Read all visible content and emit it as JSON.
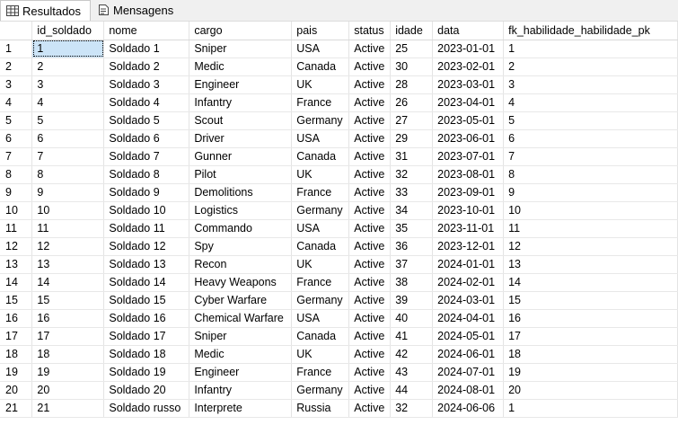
{
  "tabs": [
    {
      "label": "Resultados",
      "icon": "grid-icon"
    },
    {
      "label": "Mensagens",
      "icon": "messages-icon"
    }
  ],
  "table": {
    "columns": [
      "",
      "id_soldado",
      "nome",
      "cargo",
      "pais",
      "status",
      "idade",
      "data",
      "fk_habilidade_habilidade_pk"
    ],
    "rows": [
      [
        "1",
        "1",
        "Soldado 1",
        "Sniper",
        "USA",
        "Active",
        "25",
        "2023-01-01",
        "1"
      ],
      [
        "2",
        "2",
        "Soldado 2",
        "Medic",
        "Canada",
        "Active",
        "30",
        "2023-02-01",
        "2"
      ],
      [
        "3",
        "3",
        "Soldado 3",
        "Engineer",
        "UK",
        "Active",
        "28",
        "2023-03-01",
        "3"
      ],
      [
        "4",
        "4",
        "Soldado 4",
        "Infantry",
        "France",
        "Active",
        "26",
        "2023-04-01",
        "4"
      ],
      [
        "5",
        "5",
        "Soldado 5",
        "Scout",
        "Germany",
        "Active",
        "27",
        "2023-05-01",
        "5"
      ],
      [
        "6",
        "6",
        "Soldado 6",
        "Driver",
        "USA",
        "Active",
        "29",
        "2023-06-01",
        "6"
      ],
      [
        "7",
        "7",
        "Soldado 7",
        "Gunner",
        "Canada",
        "Active",
        "31",
        "2023-07-01",
        "7"
      ],
      [
        "8",
        "8",
        "Soldado 8",
        "Pilot",
        "UK",
        "Active",
        "32",
        "2023-08-01",
        "8"
      ],
      [
        "9",
        "9",
        "Soldado 9",
        "Demolitions",
        "France",
        "Active",
        "33",
        "2023-09-01",
        "9"
      ],
      [
        "10",
        "10",
        "Soldado 10",
        "Logistics",
        "Germany",
        "Active",
        "34",
        "2023-10-01",
        "10"
      ],
      [
        "11",
        "11",
        "Soldado 11",
        "Commando",
        "USA",
        "Active",
        "35",
        "2023-11-01",
        "11"
      ],
      [
        "12",
        "12",
        "Soldado 12",
        "Spy",
        "Canada",
        "Active",
        "36",
        "2023-12-01",
        "12"
      ],
      [
        "13",
        "13",
        "Soldado 13",
        "Recon",
        "UK",
        "Active",
        "37",
        "2024-01-01",
        "13"
      ],
      [
        "14",
        "14",
        "Soldado 14",
        "Heavy Weapons",
        "France",
        "Active",
        "38",
        "2024-02-01",
        "14"
      ],
      [
        "15",
        "15",
        "Soldado 15",
        "Cyber Warfare",
        "Germany",
        "Active",
        "39",
        "2024-03-01",
        "15"
      ],
      [
        "16",
        "16",
        "Soldado 16",
        "Chemical Warfare",
        "USA",
        "Active",
        "40",
        "2024-04-01",
        "16"
      ],
      [
        "17",
        "17",
        "Soldado 17",
        "Sniper",
        "Canada",
        "Active",
        "41",
        "2024-05-01",
        "17"
      ],
      [
        "18",
        "18",
        "Soldado 18",
        "Medic",
        "UK",
        "Active",
        "42",
        "2024-06-01",
        "18"
      ],
      [
        "19",
        "19",
        "Soldado 19",
        "Engineer",
        "France",
        "Active",
        "43",
        "2024-07-01",
        "19"
      ],
      [
        "20",
        "20",
        "Soldado 20",
        "Infantry",
        "Germany",
        "Active",
        "44",
        "2024-08-01",
        "20"
      ],
      [
        "21",
        "21",
        "Soldado russo",
        "Interprete",
        "Russia",
        "Active",
        "32",
        "2024-06-06",
        "1"
      ]
    ]
  }
}
